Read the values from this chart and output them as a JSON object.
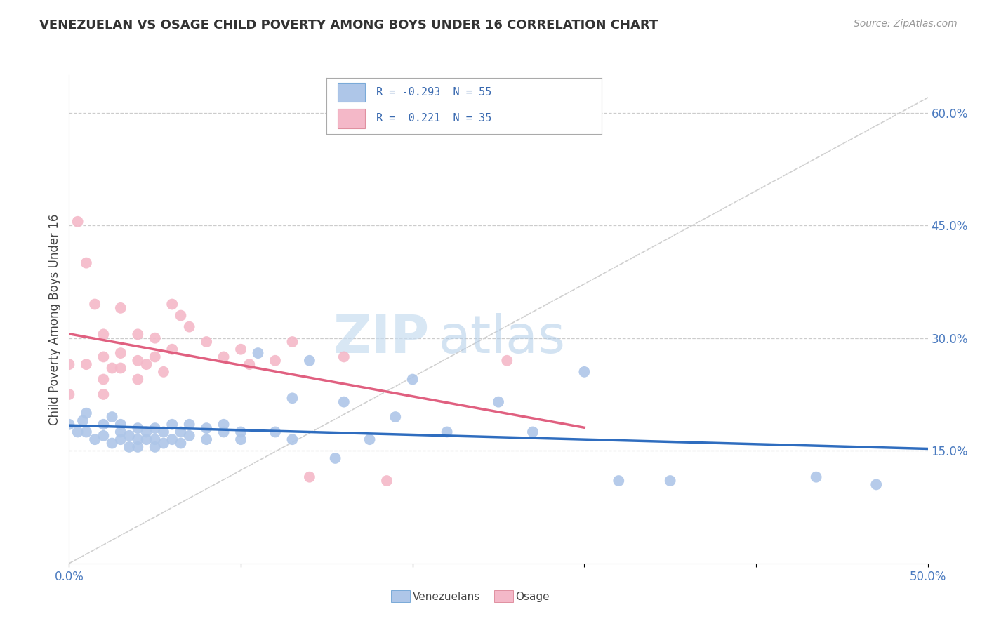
{
  "title": "VENEZUELAN VS OSAGE CHILD POVERTY AMONG BOYS UNDER 16 CORRELATION CHART",
  "source": "Source: ZipAtlas.com",
  "ylabel": "Child Poverty Among Boys Under 16",
  "xlim": [
    0.0,
    0.5
  ],
  "ylim": [
    0.0,
    0.65
  ],
  "xticks": [
    0.0,
    0.1,
    0.2,
    0.3,
    0.4,
    0.5
  ],
  "xticklabels": [
    "0.0%",
    "",
    "",
    "",
    "",
    "50.0%"
  ],
  "yticks_right": [
    0.15,
    0.3,
    0.45,
    0.6
  ],
  "ytickslabels_right": [
    "15.0%",
    "30.0%",
    "45.0%",
    "60.0%"
  ],
  "watermark_zip": "ZIP",
  "watermark_atlas": "atlas",
  "venezuelan_color": "#aec6e8",
  "osage_color": "#f4b8c8",
  "venezuelan_line_color": "#2f6dbf",
  "osage_line_color": "#e06080",
  "diagonal_color": "#d0d0d0",
  "venezuelan_points": [
    [
      0.0,
      0.185
    ],
    [
      0.005,
      0.175
    ],
    [
      0.008,
      0.19
    ],
    [
      0.01,
      0.2
    ],
    [
      0.01,
      0.175
    ],
    [
      0.015,
      0.165
    ],
    [
      0.02,
      0.185
    ],
    [
      0.02,
      0.17
    ],
    [
      0.025,
      0.195
    ],
    [
      0.025,
      0.16
    ],
    [
      0.03,
      0.175
    ],
    [
      0.03,
      0.185
    ],
    [
      0.03,
      0.165
    ],
    [
      0.035,
      0.17
    ],
    [
      0.035,
      0.155
    ],
    [
      0.04,
      0.18
    ],
    [
      0.04,
      0.165
    ],
    [
      0.04,
      0.155
    ],
    [
      0.045,
      0.175
    ],
    [
      0.045,
      0.165
    ],
    [
      0.05,
      0.18
    ],
    [
      0.05,
      0.165
    ],
    [
      0.05,
      0.155
    ],
    [
      0.055,
      0.175
    ],
    [
      0.055,
      0.16
    ],
    [
      0.06,
      0.185
    ],
    [
      0.06,
      0.165
    ],
    [
      0.065,
      0.175
    ],
    [
      0.065,
      0.16
    ],
    [
      0.07,
      0.185
    ],
    [
      0.07,
      0.17
    ],
    [
      0.08,
      0.165
    ],
    [
      0.08,
      0.18
    ],
    [
      0.09,
      0.175
    ],
    [
      0.09,
      0.185
    ],
    [
      0.1,
      0.175
    ],
    [
      0.1,
      0.165
    ],
    [
      0.11,
      0.28
    ],
    [
      0.12,
      0.175
    ],
    [
      0.13,
      0.165
    ],
    [
      0.13,
      0.22
    ],
    [
      0.14,
      0.27
    ],
    [
      0.155,
      0.14
    ],
    [
      0.16,
      0.215
    ],
    [
      0.175,
      0.165
    ],
    [
      0.19,
      0.195
    ],
    [
      0.2,
      0.245
    ],
    [
      0.22,
      0.175
    ],
    [
      0.25,
      0.215
    ],
    [
      0.27,
      0.175
    ],
    [
      0.3,
      0.255
    ],
    [
      0.32,
      0.11
    ],
    [
      0.35,
      0.11
    ],
    [
      0.435,
      0.115
    ],
    [
      0.47,
      0.105
    ]
  ],
  "osage_points": [
    [
      0.0,
      0.265
    ],
    [
      0.0,
      0.225
    ],
    [
      0.005,
      0.455
    ],
    [
      0.01,
      0.265
    ],
    [
      0.01,
      0.4
    ],
    [
      0.015,
      0.345
    ],
    [
      0.02,
      0.275
    ],
    [
      0.02,
      0.245
    ],
    [
      0.02,
      0.305
    ],
    [
      0.02,
      0.225
    ],
    [
      0.025,
      0.26
    ],
    [
      0.03,
      0.28
    ],
    [
      0.03,
      0.26
    ],
    [
      0.03,
      0.34
    ],
    [
      0.04,
      0.27
    ],
    [
      0.04,
      0.245
    ],
    [
      0.04,
      0.305
    ],
    [
      0.045,
      0.265
    ],
    [
      0.05,
      0.3
    ],
    [
      0.05,
      0.275
    ],
    [
      0.055,
      0.255
    ],
    [
      0.06,
      0.345
    ],
    [
      0.06,
      0.285
    ],
    [
      0.065,
      0.33
    ],
    [
      0.07,
      0.315
    ],
    [
      0.08,
      0.295
    ],
    [
      0.09,
      0.275
    ],
    [
      0.1,
      0.285
    ],
    [
      0.105,
      0.265
    ],
    [
      0.12,
      0.27
    ],
    [
      0.13,
      0.295
    ],
    [
      0.14,
      0.115
    ],
    [
      0.16,
      0.275
    ],
    [
      0.185,
      0.11
    ],
    [
      0.255,
      0.27
    ]
  ]
}
